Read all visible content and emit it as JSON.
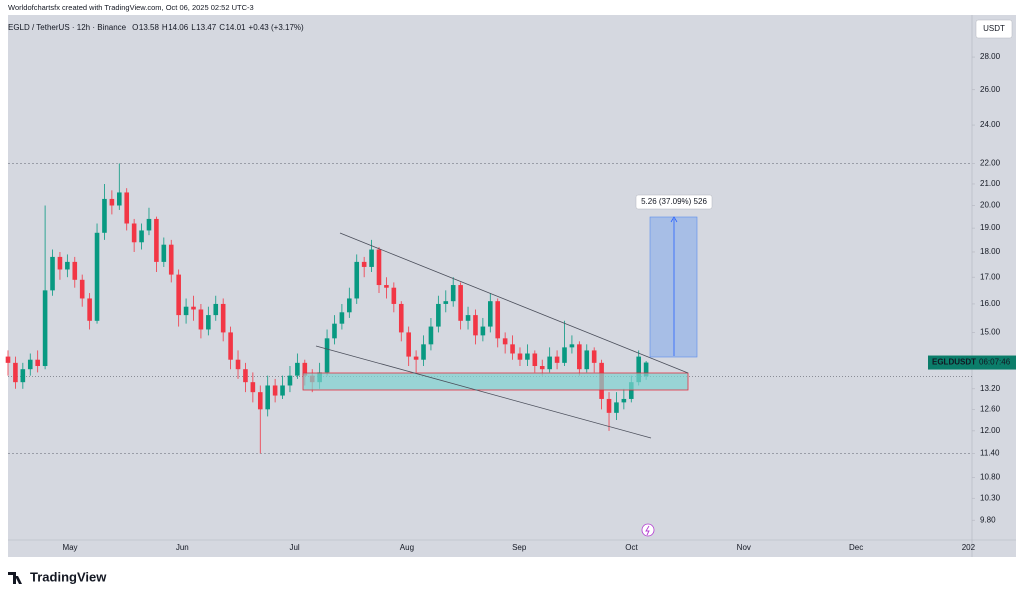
{
  "chart_data": {
    "type": "candlestick",
    "credit": "Worldofchartsfx created with TradingView.com, Oct 06, 2025 02:52 UTC-3",
    "symbol": "EGLD / TetherUS · 12h · Binance",
    "ohlc_labels": [
      "O",
      "H",
      "L",
      "C"
    ],
    "ohlc_values": [
      13.58,
      14.06,
      13.47,
      14.01
    ],
    "change": "+0.43 (+3.17%)",
    "currency": "USDT",
    "price_label": "EGLDUSDT",
    "countdown": "06:07:46",
    "measure_label": "5.26 (37.09%) 526",
    "brand": "TradingView",
    "log_scale": true,
    "up_color": "#089981",
    "down_color": "#f23645",
    "x_labels": [
      "May",
      "Jun",
      "Jul",
      "Aug",
      "Sep",
      "Oct",
      "Nov",
      "Dec",
      "202"
    ],
    "ylim": [
      9.37,
      30.8
    ],
    "yticks": [
      {
        "value": 9.8,
        "label": "9.80"
      },
      {
        "value": 10.3,
        "label": "10.30"
      },
      {
        "value": 10.8,
        "label": "10.80"
      },
      {
        "value": 11.4,
        "label": "11.40"
      },
      {
        "value": 12,
        "label": "12.00"
      },
      {
        "value": 12.6,
        "label": "12.60"
      },
      {
        "value": 13.2,
        "label": "13.20"
      },
      {
        "value": 15,
        "label": "15.00"
      },
      {
        "value": 16,
        "label": "16.00"
      },
      {
        "value": 17,
        "label": "17.00"
      },
      {
        "value": 18,
        "label": "18.00"
      },
      {
        "value": 19,
        "label": "19.00"
      },
      {
        "value": 20,
        "label": "20.00"
      },
      {
        "value": 21,
        "label": "21.00"
      },
      {
        "value": 22,
        "label": "22.00"
      },
      {
        "value": 24,
        "label": "24.00"
      },
      {
        "value": 26,
        "label": "26.00"
      },
      {
        "value": 28,
        "label": "28.00"
      }
    ],
    "hlines": [
      22,
      11.4
    ],
    "last_price": 14.01,
    "open": [
      14.2,
      14.0,
      13.4,
      13.8,
      14.1,
      13.9,
      16.5,
      17.8,
      17.3,
      17.6,
      16.9,
      16.2,
      15.4,
      18.8,
      20.3,
      20.0,
      20.6,
      19.2,
      18.4,
      18.9,
      19.4,
      17.6,
      18.3,
      17.1,
      15.6,
      15.9,
      15.8,
      15.1,
      15.6,
      16.0,
      15.0,
      14.1,
      13.8,
      13.4,
      13.1,
      12.6,
      13.3,
      13.0,
      13.3,
      13.6,
      14.0,
      13.6,
      13.4,
      13.7,
      14.8,
      15.3,
      15.7,
      16.2,
      17.6,
      17.4,
      18.1,
      16.7,
      16.6,
      16.0,
      15.0,
      14.2,
      14.1,
      14.6,
      15.2,
      16.0,
      16.1,
      16.7,
      15.4,
      15.6,
      14.9,
      15.2,
      16.1,
      14.8,
      14.6,
      14.3,
      14.1,
      14.3,
      13.9,
      13.8,
      14.2,
      14.0,
      14.5,
      14.6,
      13.8,
      14.4,
      14.0,
      12.9,
      12.5,
      12.8,
      12.9,
      13.4,
      13.58
    ],
    "high": [
      14.4,
      14.2,
      14.0,
      14.3,
      14.4,
      20.0,
      18.1,
      18.0,
      17.9,
      17.8,
      17.1,
      16.4,
      19.2,
      21.0,
      20.7,
      22.0,
      20.8,
      19.4,
      19.2,
      19.9,
      19.5,
      18.6,
      18.5,
      17.3,
      16.2,
      16.3,
      16.0,
      15.9,
      16.3,
      16.2,
      15.2,
      14.4,
      14.0,
      13.7,
      13.3,
      13.6,
      13.5,
      13.6,
      13.9,
      14.3,
      14.1,
      13.8,
      14.0,
      15.1,
      15.6,
      16.0,
      16.6,
      17.9,
      17.8,
      18.5,
      18.2,
      17.0,
      16.8,
      16.1,
      15.2,
      14.4,
      14.9,
      15.5,
      16.3,
      16.5,
      17.0,
      16.8,
      15.9,
      15.8,
      15.5,
      16.4,
      16.2,
      15.0,
      14.9,
      14.5,
      14.6,
      14.4,
      14.1,
      14.5,
      14.4,
      15.4,
      14.9,
      14.7,
      14.6,
      14.5,
      14.1,
      13.1,
      13.1,
      13.2,
      13.6,
      14.4,
      14.06
    ],
    "low": [
      13.6,
      13.2,
      13.2,
      13.6,
      13.7,
      13.8,
      16.3,
      16.9,
      17.0,
      16.6,
      15.9,
      15.1,
      15.3,
      18.5,
      19.6,
      19.8,
      18.9,
      18.0,
      18.1,
      18.7,
      17.2,
      17.4,
      16.8,
      15.2,
      15.3,
      15.4,
      14.8,
      14.9,
      15.4,
      14.7,
      13.8,
      13.5,
      13.1,
      12.8,
      11.4,
      12.4,
      12.8,
      12.9,
      13.1,
      13.5,
      13.3,
      13.1,
      13.2,
      13.6,
      14.6,
      15.1,
      15.5,
      16.0,
      17.0,
      17.2,
      16.4,
      16.2,
      15.7,
      14.7,
      13.9,
      13.7,
      13.9,
      14.4,
      15.0,
      15.7,
      15.9,
      15.1,
      15.1,
      14.6,
      14.7,
      15.0,
      14.5,
      14.3,
      14.1,
      13.9,
      13.9,
      13.7,
      13.6,
      13.7,
      13.8,
      13.9,
      14.3,
      13.6,
      13.7,
      13.7,
      12.6,
      12.0,
      12.3,
      12.6,
      12.8,
      13.3,
      13.47
    ],
    "close": [
      14.0,
      13.4,
      13.8,
      14.1,
      13.9,
      16.5,
      17.8,
      17.3,
      17.6,
      16.9,
      16.2,
      15.4,
      18.8,
      20.3,
      20.0,
      20.6,
      19.2,
      18.4,
      18.9,
      19.4,
      17.6,
      18.3,
      17.1,
      15.6,
      15.9,
      15.8,
      15.1,
      15.6,
      16.0,
      15.0,
      14.1,
      13.8,
      13.4,
      13.1,
      12.6,
      13.3,
      13.0,
      13.3,
      13.6,
      14.0,
      13.6,
      13.4,
      13.7,
      14.8,
      15.3,
      15.7,
      16.2,
      17.6,
      17.4,
      18.1,
      16.7,
      16.6,
      16.0,
      15.0,
      14.2,
      14.1,
      14.6,
      15.2,
      16.0,
      16.1,
      16.7,
      15.4,
      15.6,
      14.9,
      15.2,
      16.1,
      14.8,
      14.6,
      14.3,
      14.1,
      14.3,
      13.9,
      13.8,
      14.2,
      14.0,
      14.5,
      14.6,
      13.8,
      14.4,
      14.0,
      12.9,
      12.5,
      12.8,
      12.9,
      13.4,
      14.2,
      14.01
    ]
  }
}
